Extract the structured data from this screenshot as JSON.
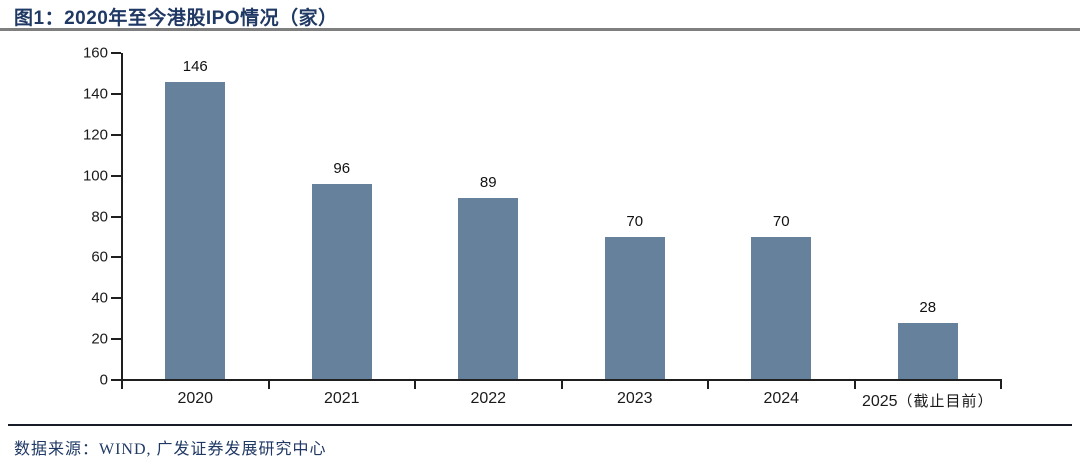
{
  "figure": {
    "title": "图1：2020年至今港股IPO情况（家）",
    "source_note": "数据来源：WIND, 广发证券发展研究中心"
  },
  "colors": {
    "bar": "#66819C",
    "title_text": "#1F3864",
    "axis": "#1f1f1f",
    "top_divider": "#7f7f7f",
    "bottom_divider": "#181c28"
  },
  "chart_data": {
    "type": "bar",
    "categories": [
      "2020",
      "2021",
      "2022",
      "2023",
      "2024",
      "2025（截止目前）"
    ],
    "values": [
      146,
      96,
      89,
      70,
      70,
      28
    ],
    "bar_labels": [
      "146",
      "96",
      "89",
      "70",
      "70",
      "28"
    ],
    "title": "图1：2020年至今港股IPO情况（家）",
    "xlabel": "",
    "ylabel": "",
    "ylim": [
      0,
      160
    ],
    "ytick_step": 20,
    "ytick_labels": [
      "0",
      "20",
      "40",
      "60",
      "80",
      "100",
      "120",
      "140",
      "160"
    ],
    "grid": false,
    "legend": "none"
  }
}
